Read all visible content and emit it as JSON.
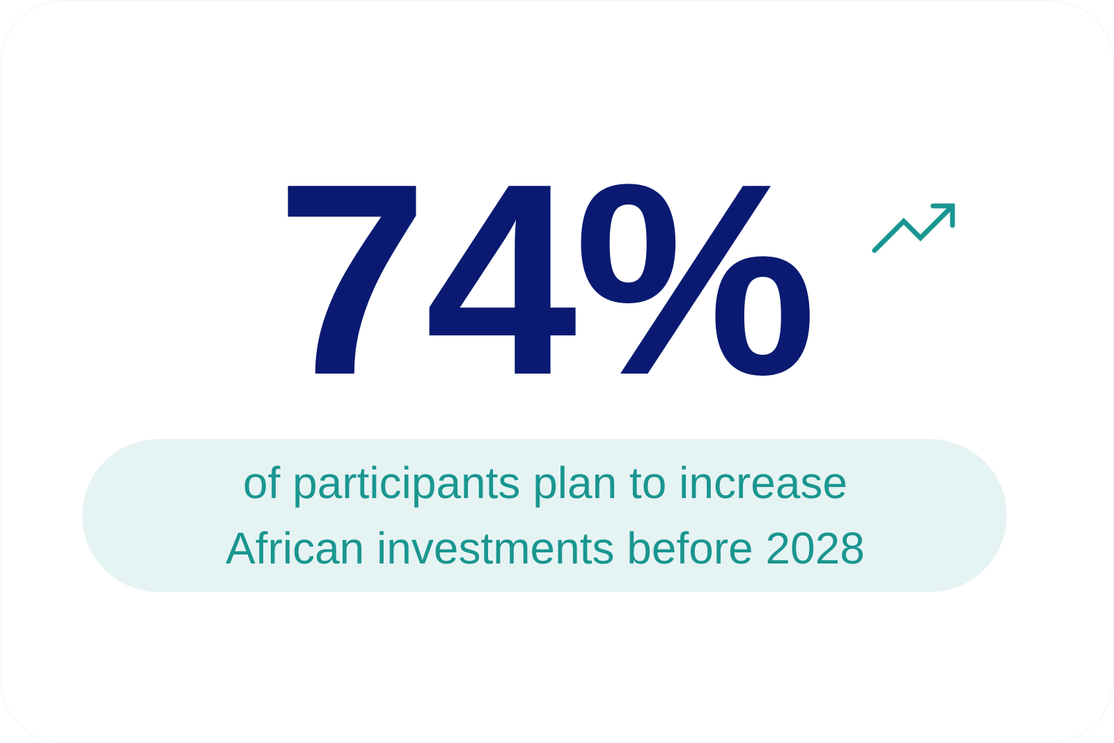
{
  "stat": {
    "value": "74%",
    "caption": [
      "of participants plan to increase",
      "African investments before 2028"
    ]
  }
}
